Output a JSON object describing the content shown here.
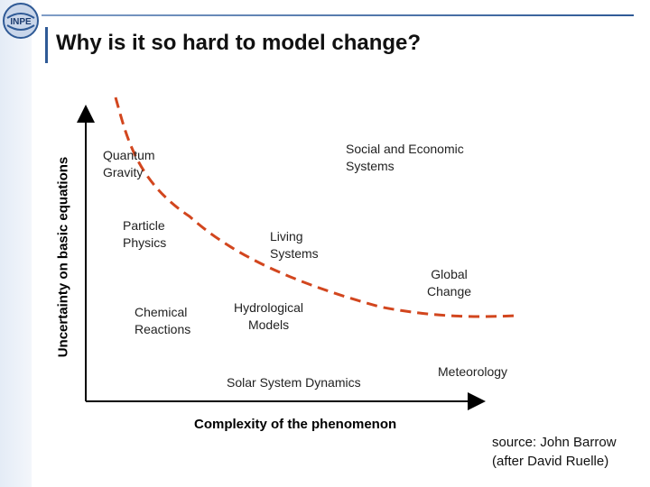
{
  "slide": {
    "title": "Why is it so hard to model change?"
  },
  "logo": {
    "text": "INPE"
  },
  "axes": {
    "ylabel": "Uncertainty on basic equations",
    "xlabel": "Complexity of the phenomenon"
  },
  "labels": {
    "quantum_gravity": [
      "Quantum",
      "Gravity"
    ],
    "particle_physics": [
      "Particle",
      "Physics"
    ],
    "chemical_reactions": [
      "Chemical",
      "Reactions"
    ],
    "social_economic": [
      "Social and Economic",
      "Systems"
    ],
    "living_systems": [
      "Living",
      "Systems"
    ],
    "hydrological_models": [
      "Hydrological",
      "Models"
    ],
    "global_change": [
      "Global",
      "Change"
    ],
    "solar_system": "Solar System Dynamics",
    "meteorology": "Meteorology"
  },
  "source": {
    "line1": "source: John Barrow",
    "line2": "(after David Ruelle)"
  },
  "colors": {
    "curve": "#d2461e",
    "accent": "#2f5a96",
    "axis": "#000000"
  }
}
